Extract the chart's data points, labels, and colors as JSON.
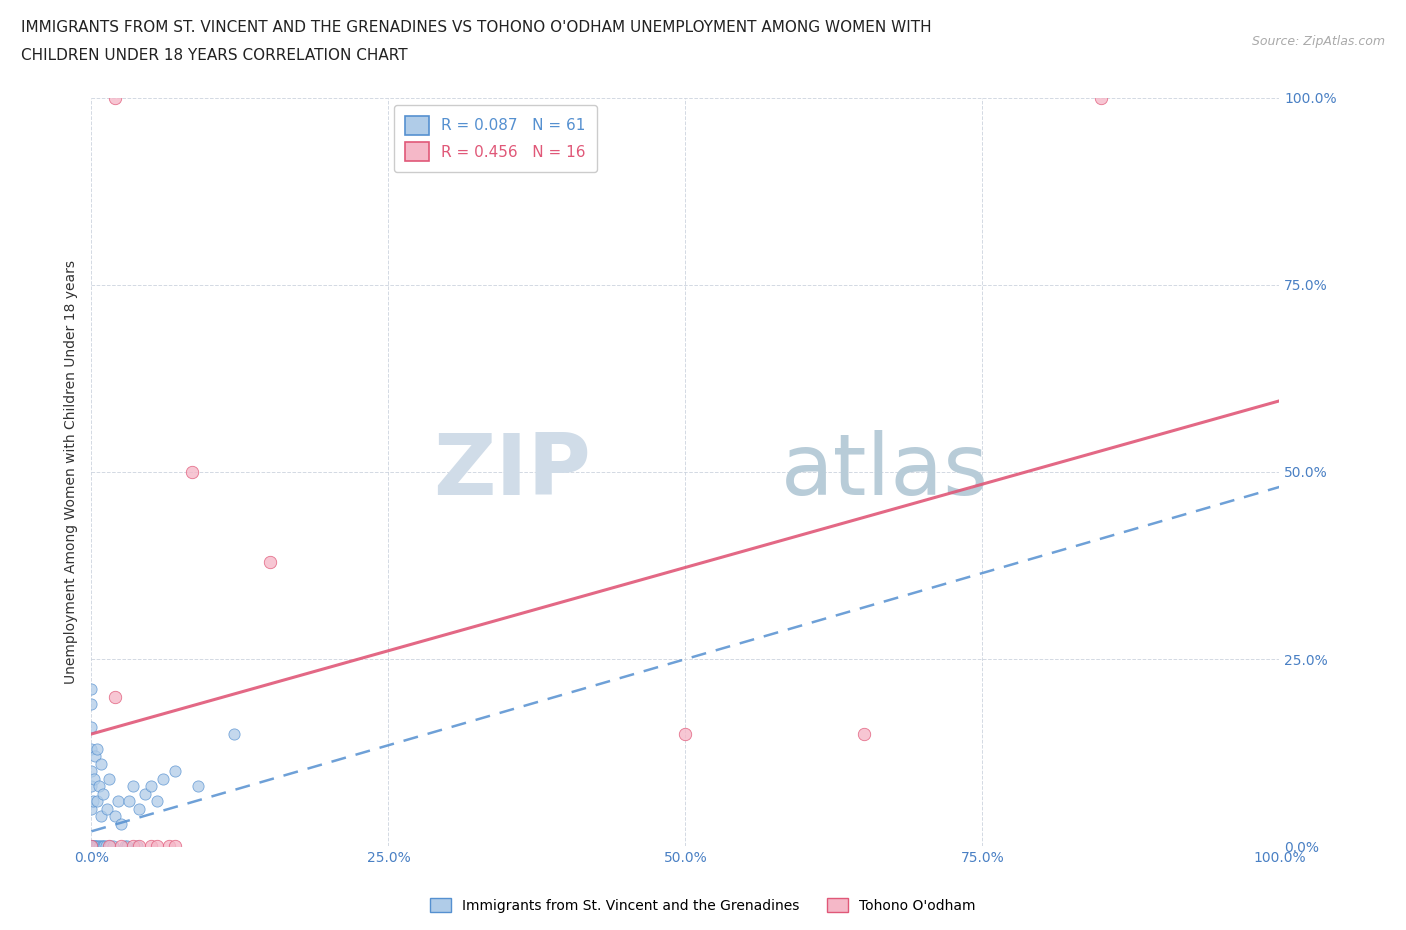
{
  "title_line1": "IMMIGRANTS FROM ST. VINCENT AND THE GRENADINES VS TOHONO O'ODHAM UNEMPLOYMENT AMONG WOMEN WITH",
  "title_line2": "CHILDREN UNDER 18 YEARS CORRELATION CHART",
  "source_text": "Source: ZipAtlas.com",
  "ylabel": "Unemployment Among Women with Children Under 18 years",
  "xlim": [
    0.0,
    1.0
  ],
  "ylim": [
    0.0,
    1.0
  ],
  "xticks": [
    0.0,
    0.25,
    0.5,
    0.75,
    1.0
  ],
  "yticks": [
    0.0,
    0.25,
    0.5,
    0.75,
    1.0
  ],
  "xticklabels": [
    "0.0%",
    "25.0%",
    "50.0%",
    "75.0%",
    "100.0%"
  ],
  "right_yticklabels": [
    "0.0%",
    "25.0%",
    "50.0%",
    "75.0%",
    "100.0%"
  ],
  "blue_series_label": "Immigrants from St. Vincent and the Grenadines",
  "pink_series_label": "Tohono O'odham",
  "blue_R": 0.087,
  "blue_N": 61,
  "pink_R": 0.456,
  "pink_N": 16,
  "blue_fill_color": "#b0cce8",
  "pink_fill_color": "#f5b8c8",
  "blue_edge_color": "#5590d0",
  "pink_edge_color": "#e05878",
  "watermark_zip": "ZIP",
  "watermark_atlas": "atlas",
  "watermark_color_zip": "#d0dce8",
  "watermark_color_atlas": "#b8ccd8",
  "blue_trend_y0": 0.02,
  "blue_trend_y1": 0.48,
  "pink_trend_y0": 0.15,
  "pink_trend_y1": 0.595,
  "blue_points_x": [
    0.0,
    0.0,
    0.0,
    0.0,
    0.0,
    0.0,
    0.0,
    0.0,
    0.0,
    0.0,
    0.0,
    0.0,
    0.0,
    0.0,
    0.0,
    0.0,
    0.0,
    0.0,
    0.0,
    0.0,
    0.001,
    0.001,
    0.002,
    0.002,
    0.003,
    0.003,
    0.004,
    0.005,
    0.005,
    0.005,
    0.006,
    0.006,
    0.007,
    0.008,
    0.008,
    0.009,
    0.01,
    0.01,
    0.011,
    0.012,
    0.013,
    0.015,
    0.015,
    0.016,
    0.018,
    0.02,
    0.022,
    0.025,
    0.028,
    0.03,
    0.032,
    0.035,
    0.038,
    0.04,
    0.045,
    0.05,
    0.055,
    0.06,
    0.07,
    0.09,
    0.12
  ],
  "blue_points_y": [
    0.0,
    0.0,
    0.0,
    0.0,
    0.0,
    0.0,
    0.0,
    0.0,
    0.0,
    0.0,
    0.05,
    0.08,
    0.1,
    0.13,
    0.16,
    0.19,
    0.21,
    0.0,
    0.0,
    0.0,
    0.0,
    0.06,
    0.0,
    0.09,
    0.0,
    0.12,
    0.0,
    0.0,
    0.06,
    0.13,
    0.0,
    0.08,
    0.0,
    0.04,
    0.11,
    0.0,
    0.0,
    0.07,
    0.0,
    0.0,
    0.05,
    0.0,
    0.09,
    0.0,
    0.0,
    0.04,
    0.06,
    0.03,
    0.0,
    0.0,
    0.06,
    0.08,
    0.0,
    0.05,
    0.07,
    0.08,
    0.06,
    0.09,
    0.1,
    0.08,
    0.15
  ],
  "pink_points_x": [
    0.02,
    0.85,
    0.02,
    0.15,
    0.5,
    0.65,
    0.015,
    0.025,
    0.035,
    0.04,
    0.05,
    0.055,
    0.065,
    0.07,
    0.085,
    0.0
  ],
  "pink_points_y": [
    1.0,
    1.0,
    0.2,
    0.38,
    0.15,
    0.15,
    0.0,
    0.0,
    0.0,
    0.0,
    0.0,
    0.0,
    0.0,
    0.0,
    0.5,
    0.0
  ]
}
